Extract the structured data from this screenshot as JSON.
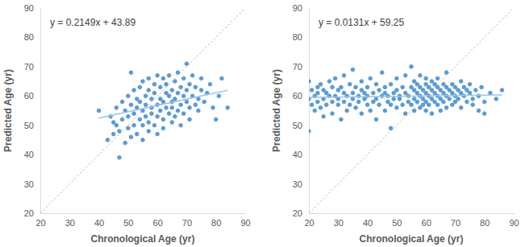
{
  "chart_data": [
    {
      "type": "scatter",
      "x_label": "Chronological Age (yr)",
      "y_label": "Predicted Age (yr)",
      "annotation": "y = 0.2149x + 43.89",
      "color": "#5b9bd5",
      "marker": "circle",
      "grid": false,
      "xlim": [
        20,
        90
      ],
      "ylim": [
        20,
        90
      ],
      "xticks": [
        20,
        30,
        40,
        50,
        60,
        70,
        80,
        90
      ],
      "yticks": [
        20,
        30,
        40,
        50,
        60,
        70,
        80,
        90
      ],
      "x": [
        40,
        43,
        44,
        45,
        45,
        46,
        46,
        47,
        47,
        48,
        48,
        49,
        49,
        50,
        50,
        50,
        51,
        51,
        51,
        52,
        52,
        52,
        53,
        53,
        53,
        54,
        54,
        54,
        55,
        55,
        55,
        55,
        56,
        56,
        56,
        57,
        57,
        57,
        57,
        58,
        58,
        58,
        59,
        59,
        59,
        60,
        60,
        60,
        60,
        61,
        61,
        61,
        62,
        62,
        62,
        62,
        63,
        63,
        63,
        64,
        64,
        64,
        65,
        65,
        65,
        65,
        66,
        66,
        66,
        67,
        67,
        67,
        68,
        68,
        68,
        69,
        69,
        69,
        70,
        70,
        70,
        71,
        71,
        71,
        72,
        72,
        73,
        73,
        74,
        74,
        75,
        75,
        76,
        77,
        78,
        79,
        80,
        81,
        82,
        84
      ],
      "values": [
        55,
        45,
        53,
        51,
        47,
        50,
        56,
        39,
        48,
        52,
        58,
        55,
        44,
        60,
        53,
        49,
        68,
        57,
        46,
        54,
        62,
        50,
        59,
        47,
        56,
        63,
        52,
        58,
        65,
        55,
        50,
        45,
        60,
        53,
        57,
        66,
        51,
        62,
        48,
        56,
        59,
        54,
        64,
        61,
        50,
        67,
        57,
        53,
        47,
        59,
        63,
        55,
        66,
        52,
        58,
        49,
        61,
        56,
        64,
        54,
        60,
        67,
        58,
        51,
        62,
        56,
        65,
        59,
        53,
        61,
        55,
        68,
        57,
        63,
        50,
        60,
        66,
        54,
        71,
        58,
        62,
        56,
        64,
        52,
        60,
        67,
        57,
        63,
        59,
        55,
        62,
        66,
        58,
        61,
        64,
        56,
        52,
        60,
        66,
        56
      ],
      "trendline": {
        "x": [
          40,
          84
        ],
        "values": [
          52.49,
          61.94
        ]
      }
    },
    {
      "type": "scatter",
      "x_label": "Chronological Age (yr)",
      "y_label": "Predicted Age (yr)",
      "annotation": "y = 0.0131x + 59.25",
      "color": "#5b9bd5",
      "marker": "circle",
      "grid": false,
      "xlim": [
        20,
        90
      ],
      "ylim": [
        20,
        90
      ],
      "xticks": [
        20,
        30,
        40,
        50,
        60,
        70,
        80,
        90
      ],
      "yticks": [
        20,
        30,
        40,
        50,
        60,
        70,
        80,
        90
      ],
      "x": [
        20,
        20,
        20,
        21,
        21,
        22,
        22,
        23,
        23,
        23,
        24,
        24,
        25,
        25,
        25,
        26,
        26,
        27,
        27,
        28,
        28,
        28,
        29,
        29,
        30,
        30,
        30,
        31,
        31,
        32,
        32,
        32,
        33,
        33,
        34,
        34,
        35,
        35,
        35,
        36,
        36,
        37,
        37,
        38,
        38,
        38,
        39,
        39,
        40,
        40,
        40,
        41,
        41,
        42,
        42,
        43,
        43,
        43,
        44,
        44,
        45,
        45,
        46,
        46,
        46,
        47,
        47,
        48,
        48,
        48,
        49,
        49,
        50,
        50,
        50,
        51,
        51,
        52,
        52,
        53,
        53,
        53,
        54,
        54,
        55,
        55,
        55,
        56,
        56,
        56,
        56,
        57,
        57,
        57,
        58,
        58,
        58,
        58,
        59,
        59,
        59,
        60,
        60,
        60,
        60,
        60,
        61,
        61,
        61,
        62,
        62,
        62,
        62,
        63,
        63,
        63,
        64,
        64,
        64,
        64,
        65,
        65,
        65,
        66,
        66,
        66,
        67,
        67,
        67,
        67,
        68,
        68,
        69,
        69,
        69,
        70,
        70,
        70,
        71,
        71,
        72,
        72,
        72,
        73,
        73,
        74,
        74,
        75,
        75,
        76,
        76,
        77,
        78,
        78,
        79,
        80,
        80,
        82,
        84,
        86
      ],
      "values": [
        65,
        48,
        59,
        62,
        57,
        60,
        55,
        63,
        58,
        61,
        56,
        64,
        59,
        62,
        53,
        61,
        57,
        65,
        60,
        54,
        63,
        58,
        60,
        66,
        57,
        62,
        59,
        63,
        52,
        58,
        61,
        67,
        60,
        55,
        64,
        57,
        61,
        59,
        69,
        56,
        63,
        60,
        58,
        62,
        54,
        65,
        59,
        61,
        57,
        63,
        60,
        66,
        55,
        61,
        58,
        59,
        64,
        52,
        62,
        57,
        60,
        68,
        55,
        61,
        63,
        58,
        60,
        64,
        57,
        49,
        61,
        59,
        62,
        56,
        66,
        59,
        60,
        57,
        63,
        61,
        54,
        67,
        60,
        58,
        63,
        57,
        70,
        59,
        62,
        55,
        65,
        61,
        58,
        64,
        60,
        56,
        63,
        67,
        62,
        59,
        57,
        64,
        61,
        58,
        55,
        66,
        60,
        63,
        57,
        59,
        62,
        65,
        54,
        61,
        58,
        64,
        60,
        63,
        57,
        66,
        62,
        59,
        55,
        61,
        64,
        58,
        60,
        63,
        56,
        68,
        62,
        59,
        61,
        57,
        64,
        63,
        60,
        58,
        59,
        62,
        61,
        56,
        65,
        60,
        63,
        58,
        62,
        61,
        64,
        59,
        57,
        62,
        60,
        55,
        63,
        58,
        54,
        61,
        59,
        62
      ],
      "trendline": {
        "x": [
          20,
          86
        ],
        "values": [
          59.51,
          60.38
        ]
      }
    }
  ]
}
